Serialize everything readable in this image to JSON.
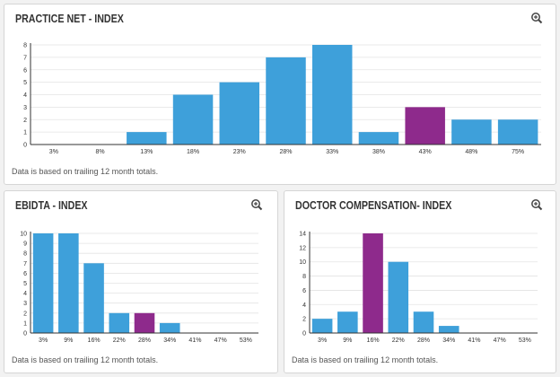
{
  "colors": {
    "bar": "#3ea0da",
    "highlight": "#8e2a8c",
    "axis": "#333333",
    "grid": "#e3e3e3"
  },
  "icons": {
    "zoom": "zoom-in-icon"
  },
  "chart_data": [
    {
      "type": "bar",
      "title": "PRACTICE NET - INDEX",
      "note": "Data is based on trailing 12 month totals.",
      "categories": [
        "3%",
        "8%",
        "13%",
        "18%",
        "23%",
        "28%",
        "33%",
        "38%",
        "43%",
        "48%",
        "75%"
      ],
      "values": [
        0,
        0,
        1,
        4,
        5,
        7,
        8,
        1,
        3,
        2,
        2
      ],
      "highlight_index": 8,
      "ylim": [
        0,
        8
      ],
      "yticks": [
        "0",
        "1",
        "2",
        "3",
        "4",
        "5",
        "6",
        "7",
        "8"
      ],
      "grid": "horizontal"
    },
    {
      "type": "bar",
      "title": "EBIDTA - INDEX",
      "note": "Data is based on trailing 12 month totals.",
      "categories": [
        "3%",
        "9%",
        "16%",
        "22%",
        "28%",
        "34%",
        "41%",
        "47%",
        "53%"
      ],
      "values": [
        10,
        10,
        7,
        2,
        2,
        1,
        0,
        0,
        0
      ],
      "highlight_index": 4,
      "ylim": [
        0,
        10
      ],
      "yticks": [
        "0",
        "1",
        "2",
        "3",
        "4",
        "5",
        "6",
        "7",
        "8",
        "9",
        "10"
      ],
      "grid": "horizontal"
    },
    {
      "type": "bar",
      "title": "DOCTOR COMPENSATION- INDEX",
      "note": "Data is based on trailing 12 month totals.",
      "categories": [
        "3%",
        "9%",
        "16%",
        "22%",
        "28%",
        "34%",
        "41%",
        "47%",
        "53%"
      ],
      "values": [
        2,
        3,
        14,
        10,
        3,
        1,
        0,
        0,
        0
      ],
      "highlight_index": 2,
      "ylim": [
        0,
        14
      ],
      "yticks": [
        "0",
        "2",
        "4",
        "6",
        "8",
        "10",
        "12",
        "14"
      ],
      "grid": "horizontal"
    }
  ]
}
